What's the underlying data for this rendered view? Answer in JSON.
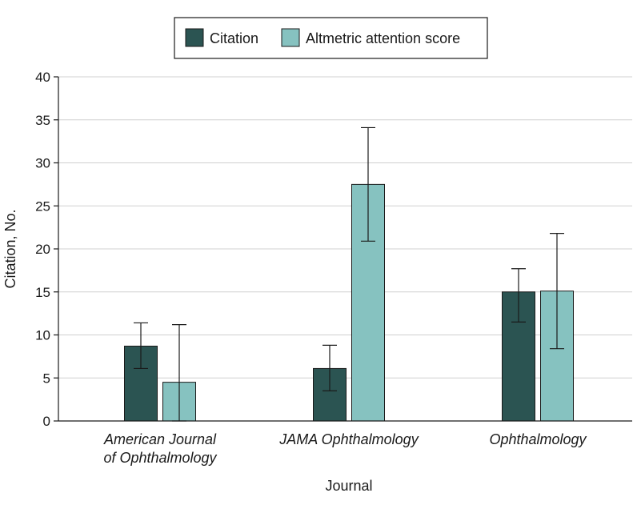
{
  "chart_data": {
    "type": "bar",
    "title": "",
    "xlabel": "Journal",
    "ylabel": "Citation, No.",
    "ylim": [
      0,
      40
    ],
    "yticks": [
      0,
      5,
      10,
      15,
      20,
      25,
      30,
      35,
      40
    ],
    "grid": true,
    "legend_position": "top-center",
    "categories": [
      [
        "American Journal",
        "of Ophthalmology"
      ],
      [
        "JAMA Ophthalmology"
      ],
      [
        "Ophthalmology"
      ]
    ],
    "series": [
      {
        "name": "Citation",
        "color": "#2b5452",
        "values": [
          8.7,
          6.1,
          15.0
        ],
        "error_low": [
          6.1,
          3.5,
          11.5
        ],
        "error_high": [
          11.4,
          8.8,
          17.7
        ]
      },
      {
        "name": "Altmetric attention score",
        "color": "#86c2c0",
        "values": [
          4.5,
          27.5,
          15.1
        ],
        "error_low": [
          0,
          20.9,
          8.4
        ],
        "error_high": [
          11.2,
          34.1,
          21.8
        ]
      }
    ]
  }
}
